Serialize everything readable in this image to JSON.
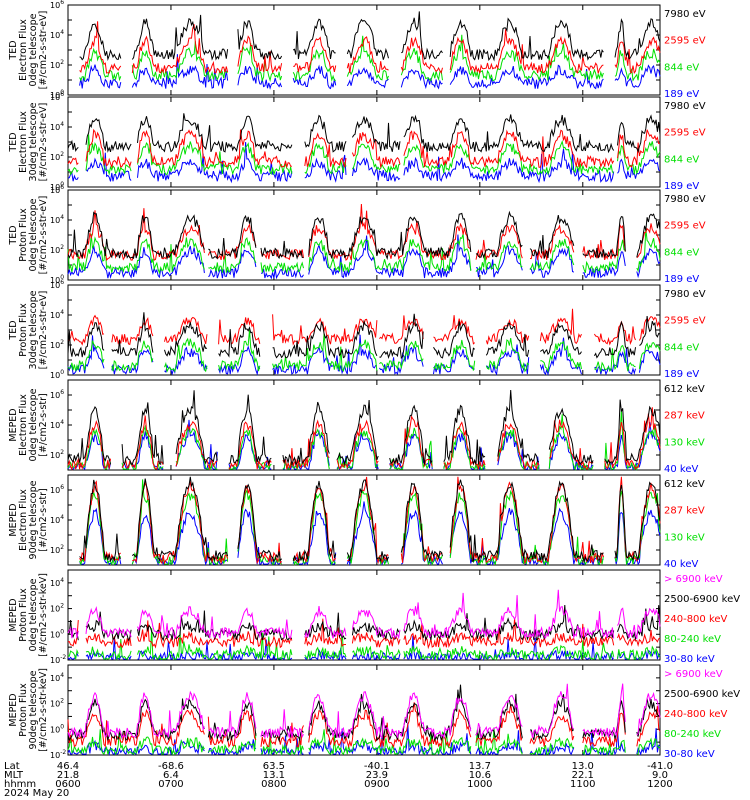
{
  "figure": {
    "date": "2024 May 20"
  },
  "colors": {
    "blue": "#0000ff",
    "red": "#ff0000",
    "green": "#00e000",
    "black": "#000000",
    "magenta": "#ff00ff"
  },
  "chart_data": [
    {
      "type": "line",
      "ylabel": [
        "TED",
        "Electron Flux",
        "0deg telescope",
        "[#/cm2-s-str-eV]"
      ],
      "ylog": true,
      "ylim": [
        1,
        1000000
      ],
      "series": [
        {
          "name": "7980 eV",
          "color": "#000000"
        },
        {
          "name": "2595 eV",
          "color": "#ff0000"
        },
        {
          "name": "844 eV",
          "color": "#00e000"
        },
        {
          "name": "189 eV",
          "color": "#0000ff"
        }
      ]
    },
    {
      "type": "line",
      "ylabel": [
        "TED",
        "Electron Flux",
        "30deg telescope",
        "[#/cm2-s-str-eV]"
      ],
      "ylog": true,
      "ylim": [
        1,
        1000000
      ],
      "series": [
        {
          "name": "7980 eV",
          "color": "#000000"
        },
        {
          "name": "2595 eV",
          "color": "#ff0000"
        },
        {
          "name": "844 eV",
          "color": "#00e000"
        },
        {
          "name": "189 eV",
          "color": "#0000ff"
        }
      ]
    },
    {
      "type": "line",
      "ylabel": [
        "TED",
        "Proton Flux",
        "0deg telescope",
        "[#/cm2-s-str-eV]"
      ],
      "ylog": true,
      "ylim": [
        1,
        1000000
      ],
      "series": [
        {
          "name": "7980 eV",
          "color": "#000000"
        },
        {
          "name": "2595 eV",
          "color": "#ff0000"
        },
        {
          "name": "844 eV",
          "color": "#00e000"
        },
        {
          "name": "189 eV",
          "color": "#0000ff"
        }
      ]
    },
    {
      "type": "line",
      "ylabel": [
        "TED",
        "Proton Flux",
        "30deg telescope",
        "[#/cm2-s-str-eV]"
      ],
      "ylog": true,
      "ylim": [
        1,
        1000000
      ],
      "series": [
        {
          "name": "7980 eV",
          "color": "#000000"
        },
        {
          "name": "2595 eV",
          "color": "#ff0000"
        },
        {
          "name": "844 eV",
          "color": "#00e000"
        },
        {
          "name": "189 eV",
          "color": "#0000ff"
        }
      ]
    },
    {
      "type": "line",
      "ylabel": [
        "MEPED",
        "Electron Flux",
        "0deg telescope",
        "[#/cm2-s-str]"
      ],
      "ylog": true,
      "ylim": [
        10,
        10000000
      ],
      "series": [
        {
          "name": "612 keV",
          "color": "#000000"
        },
        {
          "name": "287 keV",
          "color": "#ff0000"
        },
        {
          "name": "130 keV",
          "color": "#00e000"
        },
        {
          "name": "40 keV",
          "color": "#0000ff"
        }
      ]
    },
    {
      "type": "line",
      "ylabel": [
        "MEPED",
        "Electron Flux",
        "90deg telescope",
        "[#/cm2-s-str]"
      ],
      "ylog": true,
      "ylim": [
        10,
        10000000
      ],
      "series": [
        {
          "name": "612 keV",
          "color": "#000000"
        },
        {
          "name": "287 keV",
          "color": "#ff0000"
        },
        {
          "name": "130 keV",
          "color": "#00e000"
        },
        {
          "name": "40 keV",
          "color": "#0000ff"
        }
      ]
    },
    {
      "type": "line",
      "ylabel": [
        "MEPED",
        "Proton Flux",
        "0deg telescope",
        "[#/cm2-s-str-keV]"
      ],
      "ylog": true,
      "ylim": [
        0.01,
        100000
      ],
      "series": [
        {
          "name": "> 6900 keV",
          "color": "#ff00ff"
        },
        {
          "name": "2500-6900 keV",
          "color": "#000000"
        },
        {
          "name": "240-800 keV",
          "color": "#ff0000"
        },
        {
          "name": "80-240 keV",
          "color": "#00e000"
        },
        {
          "name": "30-80 keV",
          "color": "#0000ff"
        }
      ]
    },
    {
      "type": "line",
      "ylabel": [
        "MEPED",
        "Proton Flux",
        "90deg telescope",
        "[#/cm2-s-str-keV]"
      ],
      "ylog": true,
      "ylim": [
        0.01,
        100000
      ],
      "series": [
        {
          "name": "> 6900 keV",
          "color": "#ff00ff"
        },
        {
          "name": "2500-6900 keV",
          "color": "#000000"
        },
        {
          "name": "240-800 keV",
          "color": "#ff0000"
        },
        {
          "name": "80-240 keV",
          "color": "#00e000"
        },
        {
          "name": "30-80 keV",
          "color": "#0000ff"
        }
      ]
    }
  ],
  "xaxis": {
    "row_labels": [
      "Lat",
      "MLT",
      "hhmm"
    ],
    "ticks": [
      {
        "lat": "46.4",
        "mlt": "21.8",
        "hhmm": "0600"
      },
      {
        "lat": "-68.6",
        "mlt": "6.4",
        "hhmm": "0700"
      },
      {
        "lat": "63.5",
        "mlt": "13.1",
        "hhmm": "0800"
      },
      {
        "lat": "-40.1",
        "mlt": "23.9",
        "hhmm": "0900"
      },
      {
        "lat": "13.7",
        "mlt": "10.6",
        "hhmm": "1000"
      },
      {
        "lat": "13.0",
        "mlt": "22.1",
        "hhmm": "1100"
      },
      {
        "lat": "-41.0",
        "mlt": "9.0",
        "hhmm": "1200"
      }
    ]
  }
}
